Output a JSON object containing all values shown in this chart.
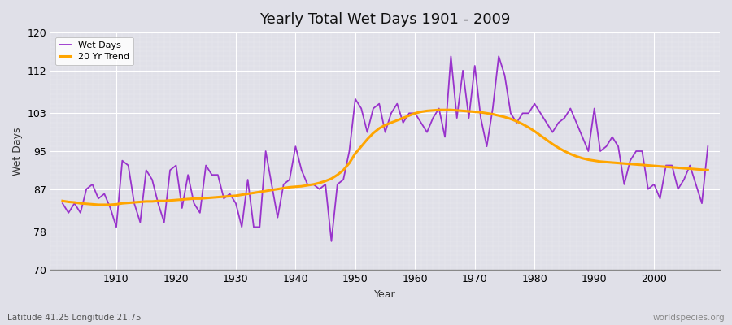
{
  "title": "Yearly Total Wet Days 1901 - 2009",
  "xlabel": "Year",
  "ylabel": "Wet Days",
  "bottom_left_text": "Latitude 41.25 Longitude 21.75",
  "bottom_right_text": "worldspecies.org",
  "ylim": [
    70,
    120
  ],
  "yticks": [
    70,
    78,
    87,
    95,
    103,
    112,
    120
  ],
  "xticks": [
    1910,
    1920,
    1930,
    1940,
    1950,
    1960,
    1970,
    1980,
    1990,
    2000
  ],
  "legend_labels": [
    "Wet Days",
    "20 Yr Trend"
  ],
  "wet_days_color": "#9933CC",
  "trend_color": "#FFA500",
  "background_color": "#E0E0E8",
  "grid_color": "#FFFFFF",
  "years": [
    1901,
    1902,
    1903,
    1904,
    1905,
    1906,
    1907,
    1908,
    1909,
    1910,
    1911,
    1912,
    1913,
    1914,
    1915,
    1916,
    1917,
    1918,
    1919,
    1920,
    1921,
    1922,
    1923,
    1924,
    1925,
    1926,
    1927,
    1928,
    1929,
    1930,
    1931,
    1932,
    1933,
    1934,
    1935,
    1936,
    1937,
    1938,
    1939,
    1940,
    1941,
    1942,
    1943,
    1944,
    1945,
    1946,
    1947,
    1948,
    1949,
    1950,
    1951,
    1952,
    1953,
    1954,
    1955,
    1956,
    1957,
    1958,
    1959,
    1960,
    1961,
    1962,
    1963,
    1964,
    1965,
    1966,
    1967,
    1968,
    1969,
    1970,
    1971,
    1972,
    1973,
    1974,
    1975,
    1976,
    1977,
    1978,
    1979,
    1980,
    1981,
    1982,
    1983,
    1984,
    1985,
    1986,
    1987,
    1988,
    1989,
    1990,
    1991,
    1992,
    1993,
    1994,
    1995,
    1996,
    1997,
    1998,
    1999,
    2000,
    2001,
    2002,
    2003,
    2004,
    2005,
    2006,
    2007,
    2008,
    2009
  ],
  "wet_days": [
    84,
    82,
    84,
    82,
    87,
    88,
    85,
    86,
    83,
    79,
    93,
    92,
    84,
    80,
    91,
    89,
    84,
    80,
    91,
    92,
    83,
    90,
    84,
    82,
    92,
    90,
    90,
    85,
    86,
    84,
    79,
    89,
    79,
    79,
    95,
    88,
    81,
    88,
    89,
    96,
    91,
    88,
    88,
    87,
    88,
    76,
    88,
    89,
    95,
    106,
    104,
    99,
    104,
    105,
    99,
    103,
    105,
    101,
    103,
    103,
    101,
    99,
    102,
    104,
    98,
    115,
    102,
    112,
    102,
    113,
    102,
    96,
    104,
    115,
    111,
    103,
    101,
    103,
    103,
    105,
    103,
    101,
    99,
    101,
    102,
    104,
    101,
    98,
    95,
    104,
    95,
    96,
    98,
    96,
    88,
    93,
    95,
    95,
    87,
    88,
    85,
    92,
    92,
    87,
    89,
    92,
    88,
    84,
    96
  ],
  "trend": [
    84.5,
    84.3,
    84.2,
    84.0,
    83.9,
    83.8,
    83.7,
    83.7,
    83.7,
    83.8,
    84.0,
    84.1,
    84.2,
    84.3,
    84.4,
    84.4,
    84.5,
    84.5,
    84.6,
    84.7,
    84.8,
    84.9,
    85.0,
    85.0,
    85.1,
    85.2,
    85.3,
    85.4,
    85.5,
    85.6,
    85.8,
    86.0,
    86.2,
    86.4,
    86.6,
    86.8,
    87.0,
    87.2,
    87.4,
    87.5,
    87.6,
    87.8,
    88.0,
    88.3,
    88.7,
    89.2,
    90.0,
    91.0,
    92.5,
    94.5,
    96.0,
    97.5,
    98.8,
    99.8,
    100.5,
    101.0,
    101.5,
    102.0,
    102.5,
    103.0,
    103.3,
    103.5,
    103.6,
    103.7,
    103.7,
    103.7,
    103.6,
    103.5,
    103.4,
    103.3,
    103.2,
    103.0,
    102.8,
    102.5,
    102.2,
    101.8,
    101.3,
    100.7,
    100.0,
    99.2,
    98.3,
    97.4,
    96.5,
    95.7,
    95.0,
    94.4,
    93.9,
    93.5,
    93.2,
    93.0,
    92.8,
    92.7,
    92.6,
    92.5,
    92.4,
    92.3,
    92.2,
    92.1,
    92.0,
    91.9,
    91.8,
    91.7,
    91.6,
    91.5,
    91.4,
    91.3,
    91.2,
    91.1,
    91.0
  ]
}
